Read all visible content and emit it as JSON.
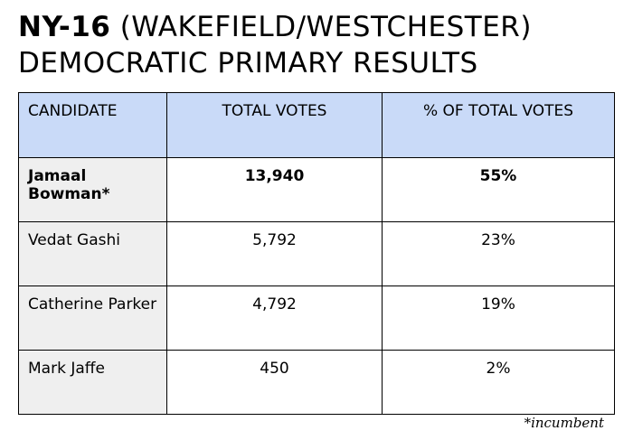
{
  "header": {
    "title_bold": "NY-16",
    "title_rest": "(WAKEFIELD/WESTCHESTER)",
    "subtitle": "DEMOCRATIC PRIMARY RESULTS"
  },
  "table": {
    "columns": [
      "CANDIDATE",
      "TOTAL VOTES",
      "% OF TOTAL VOTES"
    ],
    "rows": [
      [
        "Jamaal Bowman*",
        "13,940",
        "55%"
      ],
      [
        "Vedat Gashi",
        "5,792",
        "23%"
      ],
      [
        "Catherine Parker",
        "4,792",
        "19%"
      ],
      [
        "Mark Jaffe",
        "450",
        "2%"
      ]
    ]
  },
  "footnote": "*incumbent"
}
